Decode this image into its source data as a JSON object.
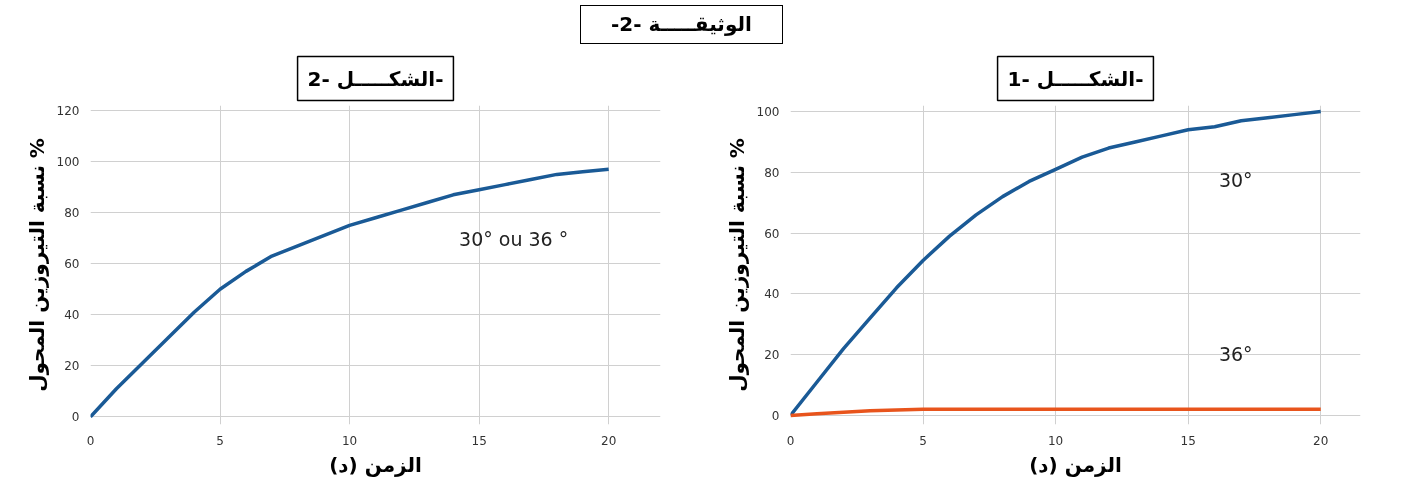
{
  "chart_data": [
    {
      "type": "line",
      "title": "الشكـــــل -1-",
      "xlabel": "الزمن (د)",
      "ylabel": "نسبة التيروزين المحول %",
      "annotations": [
        "الوثيقـــــة -2-"
      ],
      "xlim": [
        0,
        21.5
      ],
      "xticks": [
        0,
        5,
        10,
        15,
        20
      ],
      "ylim": [
        -3,
        102
      ],
      "yticks": [
        0,
        20,
        40,
        60,
        80,
        100
      ],
      "grid": true,
      "legend": false,
      "marker": "none",
      "line_style": "solid",
      "x": [
        0,
        1,
        2,
        3,
        4,
        5,
        6,
        7,
        8,
        9,
        10,
        11,
        12,
        13,
        14,
        15,
        16,
        17,
        18,
        19,
        20
      ],
      "series": [
        {
          "name": "30°",
          "color": "#1a5a96",
          "values": [
            0,
            11,
            22,
            32,
            42,
            51,
            59,
            66,
            72,
            77,
            81,
            85,
            88,
            90,
            92,
            94,
            95,
            97,
            98,
            99,
            100
          ]
        },
        {
          "name": "36°",
          "color": "#e8541c",
          "values": [
            0,
            0.5,
            1,
            1.5,
            1.8,
            2,
            2,
            2,
            2,
            2,
            2,
            2,
            2,
            2,
            2,
            2,
            2,
            2,
            2,
            2,
            2
          ]
        }
      ]
    },
    {
      "type": "line",
      "title": "الشكـــــل -2-",
      "xlabel": "الزمن (د)",
      "ylabel": "نسبة التيروزين المحول %",
      "xlim": [
        0,
        22
      ],
      "xticks": [
        0,
        5,
        10,
        15,
        20
      ],
      "ylim": [
        -3,
        122
      ],
      "yticks": [
        0,
        20,
        40,
        60,
        80,
        100,
        120
      ],
      "grid": true,
      "legend": false,
      "marker": "none",
      "line_style": "solid",
      "x": [
        0,
        1,
        2,
        3,
        4,
        5,
        6,
        7,
        8,
        9,
        10,
        11,
        12,
        13,
        14,
        15,
        16,
        17,
        18,
        19,
        20
      ],
      "series": [
        {
          "name": "30° ou 36 °",
          "color": "#1a5a96",
          "values": [
            0,
            11,
            21,
            31,
            41,
            50,
            57,
            63,
            67,
            71,
            75,
            78,
            81,
            84,
            87,
            89,
            91,
            93,
            95,
            96,
            97
          ]
        }
      ]
    }
  ]
}
